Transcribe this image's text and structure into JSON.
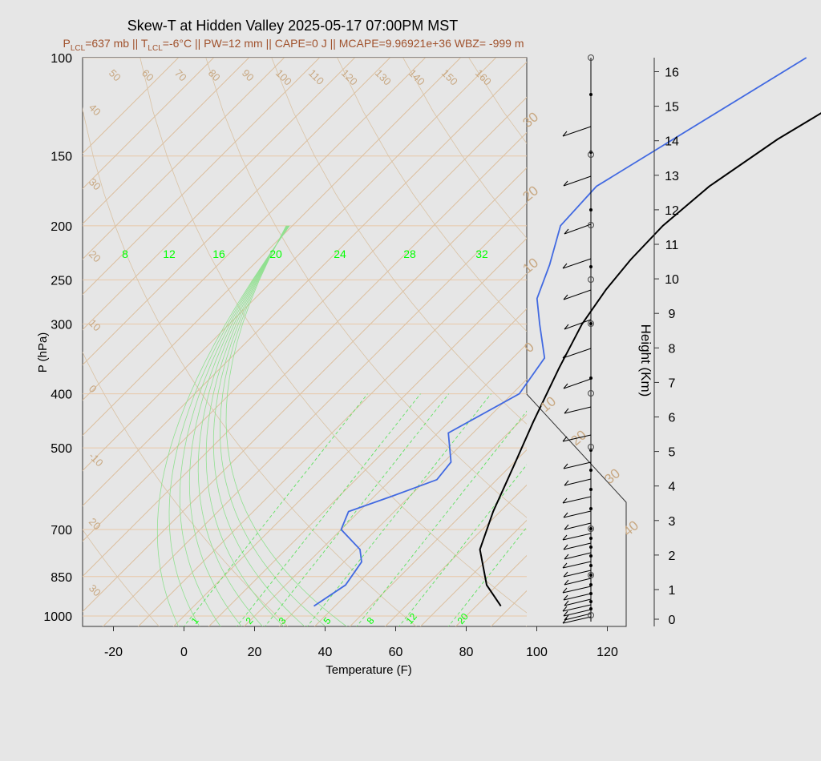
{
  "title": "Skew-T at Hidden Valley 2025-05-17 07:00PM MST",
  "subtitle": {
    "plcl_prefix": "P",
    "plcl_sub": "LCL",
    "plcl_rest": "=637 mb || T",
    "tlcl_sub": "LCL",
    "rest": "=-6°C || PW=12 mm || CAPE=0 J || MCAPE=9.96921e+36 WBZ= -999 m"
  },
  "colors": {
    "temperature": "#000000",
    "dewpoint": "#4169e1",
    "isotherm": "#d2b48c",
    "mixing_ratio": "#00ff00",
    "subtitle": "#a0522d"
  },
  "chart_data": {
    "type": "line",
    "title": "Skew-T at Hidden Valley 2025-05-17 07:00PM MST",
    "xlabel": "Temperature (F)",
    "ylabel": "P (hPa)",
    "y2label": "Height (Km)",
    "xlim": [
      -28,
      125
    ],
    "ylim": [
      1050,
      100
    ],
    "y_scale": "log",
    "x_ticks": [
      -20,
      0,
      20,
      40,
      60,
      80,
      100,
      120
    ],
    "p_ticks": [
      100,
      150,
      200,
      250,
      300,
      400,
      500,
      700,
      850,
      1000
    ],
    "height_ticks": [
      0,
      1,
      2,
      3,
      4,
      5,
      6,
      7,
      8,
      9,
      10,
      11,
      12,
      13,
      14,
      15,
      16
    ],
    "isotherm_labels": [
      "50",
      "60",
      "70",
      "80",
      "90",
      "100",
      "110",
      "120",
      "130",
      "140",
      "150",
      "160"
    ],
    "left_isotherm_labels": [
      "40",
      "30",
      "20",
      "10",
      "0",
      "-10",
      "20",
      "30"
    ],
    "right_isotherm_labels": [
      "30",
      "20",
      "10",
      "0",
      "10",
      "20",
      "30",
      "40"
    ],
    "mixing_ratio_labels": [
      "8",
      "12",
      "16",
      "20",
      "24",
      "28",
      "32"
    ],
    "bottom_labels": [
      "1",
      "2",
      "3",
      "5",
      "8",
      "12",
      "20"
    ],
    "series": [
      {
        "name": "Temperature",
        "x": [
          87,
          77,
          65,
          58,
          51,
          44,
          36,
          30,
          27,
          25.5,
          25,
          27,
          33,
          42,
          48
        ],
        "y": [
          960,
          880,
          760,
          650,
          540,
          450,
          360,
          300,
          260,
          230,
          200,
          170,
          140,
          115,
          100
        ]
      },
      {
        "name": "Dewpoint",
        "x": [
          34,
          37,
          35,
          31,
          20,
          17,
          25,
          33,
          32,
          23,
          32,
          29,
          18,
          10,
          4,
          -4,
          -5,
          18
        ],
        "y": [
          960,
          880,
          800,
          760,
          700,
          650,
          610,
          570,
          530,
          470,
          400,
          345,
          300,
          270,
          235,
          200,
          170,
          100
        ]
      }
    ]
  }
}
